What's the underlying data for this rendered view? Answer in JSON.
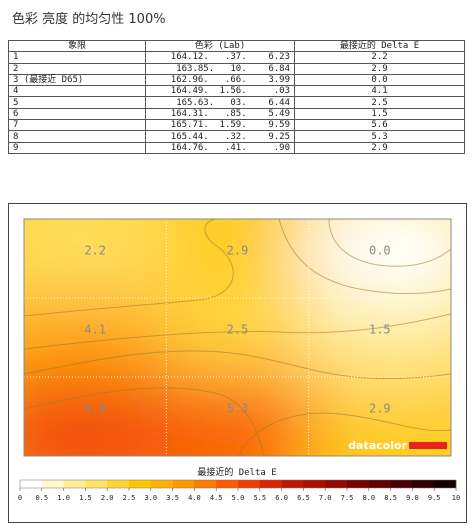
{
  "title": "色彩 亮度 的均匀性 100%",
  "table": {
    "headers": [
      "象限",
      "色彩 (Lab)",
      "最接近的 Delta E"
    ],
    "rows": [
      {
        "zone": "1",
        "lab": "164.12.   .37.    6.23",
        "de": "2.2"
      },
      {
        "zone": "2",
        "lab": "163.85.   10.    6.84",
        "de": "2.9"
      },
      {
        "zone": "3 (最接近 D65)",
        "lab": "162.96.   .66.    3.99",
        "de": "0.0"
      },
      {
        "zone": "4",
        "lab": "164.49.  1.56.     .03",
        "de": "4.1"
      },
      {
        "zone": "5",
        "lab": "165.63.   03.    6.44",
        "de": "2.5"
      },
      {
        "zone": "6",
        "lab": "164.31.   .85.    5.49",
        "de": "1.5"
      },
      {
        "zone": "7",
        "lab": "165.71.  1.59.    9.59",
        "de": "5.6"
      },
      {
        "zone": "8",
        "lab": "165.44.   .32.    9.25",
        "de": "5.3"
      },
      {
        "zone": "9",
        "lab": "164.76.   .41.     .90",
        "de": "2.9"
      }
    ]
  },
  "chart_data": {
    "type": "heatmap",
    "grid": {
      "rows": 3,
      "cols": 3
    },
    "values": [
      [
        2.2,
        2.9,
        0.0
      ],
      [
        4.1,
        2.5,
        1.5
      ],
      [
        5.6,
        5.3,
        2.9
      ]
    ],
    "labels": [
      [
        "2.2",
        "2.9",
        "0.0"
      ],
      [
        "4.1",
        "2.5",
        "1.5"
      ],
      [
        "5.6",
        "5.3",
        "2.9"
      ]
    ],
    "legend": {
      "title": "最接近的 Delta E",
      "ticks": [
        "0",
        "0.5",
        "1.0",
        "1.5",
        "2.0",
        "2.5",
        "3.0",
        "3.5",
        "4.0",
        "4.5",
        "5.0",
        "5.5",
        "6.0",
        "6.5",
        "7.0",
        "7.5",
        "8.0",
        "8.5",
        "9.0",
        "9.5",
        "10"
      ],
      "min": 0,
      "max": 10,
      "colors": [
        "#ffffff",
        "#fff6cc",
        "#ffed99",
        "#ffe466",
        "#ffd633",
        "#ffc700",
        "#ffb300",
        "#ff9900",
        "#ff7a00",
        "#ff5a00",
        "#f03c00",
        "#d92500",
        "#c01800",
        "#a80f00",
        "#900800",
        "#780400",
        "#600200",
        "#480000",
        "#300000",
        "#180000"
      ]
    },
    "brand": "datacolor",
    "brand_color": "#e8231b"
  }
}
